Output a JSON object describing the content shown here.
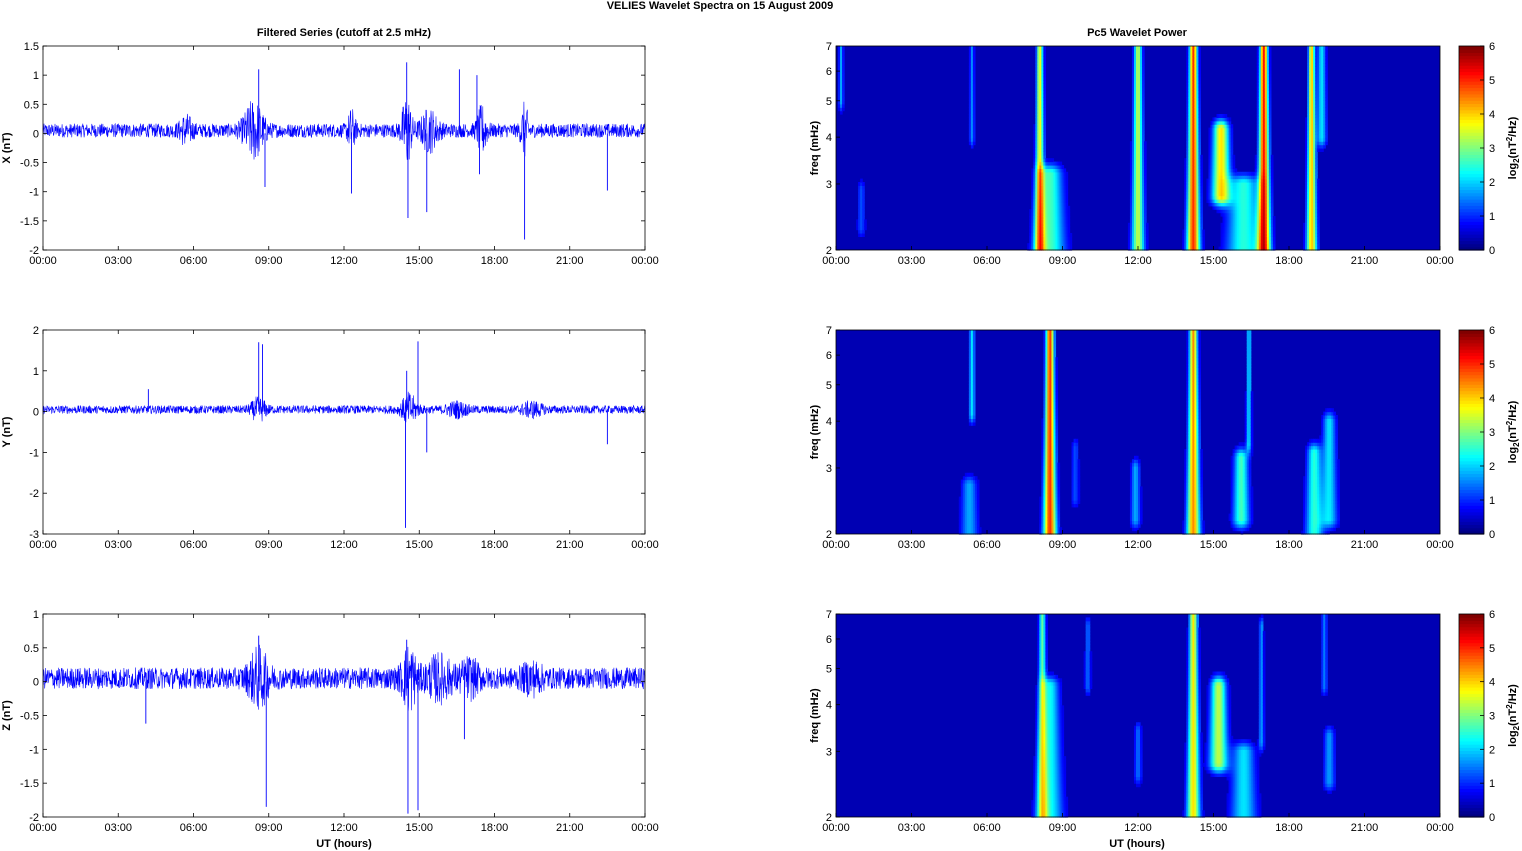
{
  "suptitle": "VELIES Wavelet Spectra on 15 August    2009",
  "left_title": "Filtered Series (cutoff at 2.5 mHz)",
  "right_title": "Pc5 Wavelet Power",
  "xlabel": "UT (hours)",
  "time_ticks": [
    "00:00",
    "03:00",
    "06:00",
    "09:00",
    "12:00",
    "15:00",
    "18:00",
    "21:00",
    "00:00"
  ],
  "freq_ylabel": "freq (mHz)",
  "freq_ticks": [
    "2",
    "3",
    "4",
    "5",
    "6",
    "7"
  ],
  "colorbar_ticks": [
    "0",
    "1",
    "2",
    "3",
    "4",
    "5",
    "6"
  ],
  "colorbar_label_prefix": "log",
  "colorbar_label_sub": "2",
  "colorbar_label_mid": "(nT",
  "colorbar_label_sup": "2",
  "colorbar_label_suffix": "/Hz)",
  "series_color": "#0000ff",
  "chart_data": [
    {
      "type": "line",
      "component": "X",
      "ylabel": "X (nT)",
      "xlim_hours": [
        0,
        24
      ],
      "ylim": [
        -2,
        1.5
      ],
      "yticks": [
        "1.5",
        "1",
        "0.5",
        "0",
        "-0.5",
        "-1",
        "-1.5",
        "-2"
      ],
      "noise_amplitude": 0.12,
      "bursts": [
        {
          "t": 5.7,
          "w": 0.25,
          "a": 0.2
        },
        {
          "t": 8.4,
          "w": 0.4,
          "a": 0.45
        },
        {
          "t": 12.3,
          "w": 0.15,
          "a": 0.3
        },
        {
          "t": 14.5,
          "w": 0.2,
          "a": 0.55
        },
        {
          "t": 15.4,
          "w": 0.35,
          "a": 0.3
        },
        {
          "t": 17.5,
          "w": 0.2,
          "a": 0.35
        },
        {
          "t": 19.2,
          "w": 0.15,
          "a": 0.4
        }
      ],
      "spikes": [
        {
          "t": 8.6,
          "v": 1.1
        },
        {
          "t": 8.85,
          "v": -0.92
        },
        {
          "t": 12.3,
          "v": -1.03
        },
        {
          "t": 14.5,
          "v": 1.22
        },
        {
          "t": 14.55,
          "v": -1.45
        },
        {
          "t": 15.3,
          "v": -1.35
        },
        {
          "t": 16.6,
          "v": 1.1
        },
        {
          "t": 17.3,
          "v": 1.0
        },
        {
          "t": 17.4,
          "v": -0.7
        },
        {
          "t": 19.2,
          "v": -1.82
        },
        {
          "t": 22.5,
          "v": -0.98
        }
      ]
    },
    {
      "type": "line",
      "component": "Y",
      "ylabel": "Y (nT)",
      "xlim_hours": [
        0,
        24
      ],
      "ylim": [
        -3,
        2
      ],
      "yticks": [
        "2",
        "1",
        "0",
        "-1",
        "-2",
        "-3"
      ],
      "noise_amplitude": 0.1,
      "bursts": [
        {
          "t": 8.6,
          "w": 0.3,
          "a": 0.25
        },
        {
          "t": 14.6,
          "w": 0.3,
          "a": 0.35
        },
        {
          "t": 16.5,
          "w": 0.4,
          "a": 0.15
        },
        {
          "t": 19.5,
          "w": 0.4,
          "a": 0.15
        }
      ],
      "spikes": [
        {
          "t": 8.6,
          "v": 1.7
        },
        {
          "t": 8.75,
          "v": 1.65
        },
        {
          "t": 14.45,
          "v": -2.85
        },
        {
          "t": 14.5,
          "v": 1.0
        },
        {
          "t": 14.95,
          "v": 1.72
        },
        {
          "t": 15.3,
          "v": -1.0
        },
        {
          "t": 22.5,
          "v": -0.8
        },
        {
          "t": 4.2,
          "v": 0.55
        }
      ]
    },
    {
      "type": "line",
      "component": "Z",
      "ylabel": "Z (nT)",
      "xlim_hours": [
        0,
        24
      ],
      "ylim": [
        -2,
        1
      ],
      "yticks": [
        "1",
        "0.5",
        "0",
        "-0.5",
        "-1",
        "-1.5",
        "-2"
      ],
      "noise_amplitude": 0.16,
      "bursts": [
        {
          "t": 8.6,
          "w": 0.4,
          "a": 0.35
        },
        {
          "t": 14.6,
          "w": 0.3,
          "a": 0.4
        },
        {
          "t": 15.8,
          "w": 0.5,
          "a": 0.25
        },
        {
          "t": 17.0,
          "w": 0.4,
          "a": 0.2
        },
        {
          "t": 19.5,
          "w": 0.4,
          "a": 0.15
        }
      ],
      "spikes": [
        {
          "t": 8.9,
          "v": -1.85
        },
        {
          "t": 8.6,
          "v": 0.68
        },
        {
          "t": 14.5,
          "v": 0.62
        },
        {
          "t": 14.55,
          "v": -1.95
        },
        {
          "t": 14.95,
          "v": -1.9
        },
        {
          "t": 16.8,
          "v": -0.85
        },
        {
          "t": 4.1,
          "v": -0.62
        }
      ]
    },
    {
      "type": "heatmap",
      "component": "X",
      "ylabel": "freq (mHz)",
      "xlim_hours": [
        0,
        24
      ],
      "ylim_mhz": [
        2,
        7
      ],
      "y_scale": "log",
      "clim": [
        0,
        6
      ],
      "colormap": "jet",
      "features": [
        {
          "t": 8.1,
          "f1": 2,
          "f2": 7,
          "w": 0.12,
          "a": 3.8
        },
        {
          "t": 8.5,
          "f1": 2,
          "f2": 3.2,
          "w": 0.35,
          "a": 2.6
        },
        {
          "t": 12.0,
          "f1": 2,
          "f2": 7,
          "w": 0.15,
          "a": 3.4
        },
        {
          "t": 14.2,
          "f1": 2,
          "f2": 7,
          "w": 0.15,
          "a": 5.2
        },
        {
          "t": 15.3,
          "f1": 2.8,
          "f2": 4.2,
          "w": 0.25,
          "a": 4.0
        },
        {
          "t": 16.2,
          "f1": 2,
          "f2": 3.0,
          "w": 0.4,
          "a": 2.4
        },
        {
          "t": 17.0,
          "f1": 2,
          "f2": 7,
          "w": 0.15,
          "a": 5.4
        },
        {
          "t": 18.9,
          "f1": 2,
          "f2": 7,
          "w": 0.12,
          "a": 4.2
        },
        {
          "t": 19.3,
          "f1": 4,
          "f2": 7,
          "w": 0.15,
          "a": 2.0
        },
        {
          "t": 5.4,
          "f1": 4,
          "f2": 7,
          "w": 0.08,
          "a": 1.4
        },
        {
          "t": 0.2,
          "f1": 5,
          "f2": 7,
          "w": 0.08,
          "a": 1.6
        },
        {
          "t": 1.0,
          "f1": 2.3,
          "f2": 2.9,
          "w": 0.1,
          "a": 1.0
        }
      ]
    },
    {
      "type": "heatmap",
      "component": "Y",
      "ylabel": "freq (mHz)",
      "xlim_hours": [
        0,
        24
      ],
      "ylim_mhz": [
        2,
        7
      ],
      "y_scale": "log",
      "clim": [
        0,
        6
      ],
      "colormap": "jet",
      "features": [
        {
          "t": 5.4,
          "f1": 4.2,
          "f2": 7,
          "w": 0.1,
          "a": 2.0
        },
        {
          "t": 5.3,
          "f1": 2,
          "f2": 2.7,
          "w": 0.2,
          "a": 1.6
        },
        {
          "t": 8.5,
          "f1": 2,
          "f2": 7,
          "w": 0.15,
          "a": 5.2
        },
        {
          "t": 11.9,
          "f1": 2.2,
          "f2": 3.0,
          "w": 0.12,
          "a": 1.6
        },
        {
          "t": 14.2,
          "f1": 2,
          "f2": 7,
          "w": 0.15,
          "a": 4.6
        },
        {
          "t": 16.1,
          "f1": 2.2,
          "f2": 3.2,
          "w": 0.2,
          "a": 2.6
        },
        {
          "t": 16.4,
          "f1": 3.5,
          "f2": 7,
          "w": 0.08,
          "a": 2.0
        },
        {
          "t": 19.0,
          "f1": 2,
          "f2": 3.3,
          "w": 0.2,
          "a": 2.4
        },
        {
          "t": 19.6,
          "f1": 2.2,
          "f2": 4.0,
          "w": 0.2,
          "a": 2.0
        },
        {
          "t": 9.5,
          "f1": 2.5,
          "f2": 3.4,
          "w": 0.1,
          "a": 1.0
        }
      ]
    },
    {
      "type": "heatmap",
      "component": "Z",
      "ylabel": "freq (mHz)",
      "xlim_hours": [
        0,
        24
      ],
      "ylim_mhz": [
        2,
        7
      ],
      "y_scale": "log",
      "clim": [
        0,
        6
      ],
      "colormap": "jet",
      "features": [
        {
          "t": 8.2,
          "f1": 2,
          "f2": 7,
          "w": 0.12,
          "a": 2.8
        },
        {
          "t": 8.5,
          "f1": 2,
          "f2": 4.5,
          "w": 0.3,
          "a": 2.2
        },
        {
          "t": 10.0,
          "f1": 4.5,
          "f2": 6.5,
          "w": 0.1,
          "a": 1.2
        },
        {
          "t": 12.0,
          "f1": 2.6,
          "f2": 3.4,
          "w": 0.1,
          "a": 1.2
        },
        {
          "t": 14.2,
          "f1": 2,
          "f2": 7,
          "w": 0.15,
          "a": 4.0
        },
        {
          "t": 15.2,
          "f1": 2.8,
          "f2": 4.5,
          "w": 0.25,
          "a": 3.4
        },
        {
          "t": 16.2,
          "f1": 2,
          "f2": 3.0,
          "w": 0.3,
          "a": 2.0
        },
        {
          "t": 16.9,
          "f1": 3.2,
          "f2": 6.5,
          "w": 0.08,
          "a": 1.5
        },
        {
          "t": 19.4,
          "f1": 4.5,
          "f2": 7,
          "w": 0.1,
          "a": 1.3
        },
        {
          "t": 19.6,
          "f1": 2.5,
          "f2": 3.3,
          "w": 0.15,
          "a": 1.5
        }
      ]
    }
  ]
}
